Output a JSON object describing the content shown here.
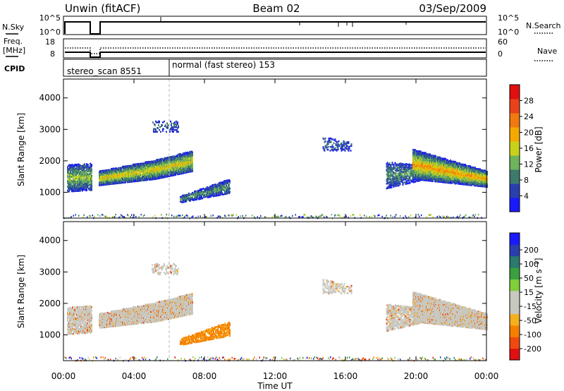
{
  "header": {
    "title": "Unwin (fitACF)",
    "beam": "Beam 02",
    "date": "03/Sep/2009"
  },
  "summary_panel": {
    "nsky_label": "N.Sky",
    "nsky_tick_top": "10^5",
    "nsky_tick_bottom": "10^0",
    "nsearch_label": "N.Search",
    "nsearch_tick_top": "10^5",
    "nsearch_tick_bottom": "10^0",
    "freq_label_line1": "Freq.",
    "freq_label_line2": "[MHz]",
    "freq_tick_top": "18",
    "freq_tick_bottom": "8",
    "nave_label": "Nave",
    "nave_tick_top": "60",
    "nave_tick_bottom": "0",
    "cpid_label": "CPID",
    "cpid_mode_1": "stereo_scan 8551",
    "cpid_mode_2": "normal (fast stereo) 153"
  },
  "colors": {
    "power_scale": [
      "#1a1aff",
      "#2a3fae",
      "#3d7a6e",
      "#6fb35a",
      "#c9d21a",
      "#f5a800",
      "#f07a10",
      "#e8421a",
      "#e01010"
    ],
    "velocity_scale": [
      "#e01010",
      "#f04a10",
      "#f57f00",
      "#f5b020",
      "#c8c8c0",
      "#c8c8c0",
      "#7fcf3a",
      "#3aa040",
      "#2a7a6e",
      "#2a3fae",
      "#1a1aff"
    ]
  },
  "chart_data": [
    {
      "type": "heatmap",
      "panel": "power",
      "ylabel": "Slant Range [km]",
      "yticks": [
        "1000",
        "2000",
        "3000",
        "4000"
      ],
      "ylim": [
        180,
        4600
      ],
      "xlim": [
        0,
        24
      ],
      "colorbar_label": "Power [dB]",
      "colorbar_ticks": [
        "4",
        "8",
        "12",
        "16",
        "20",
        "24",
        "28"
      ],
      "colorbar_range": [
        0,
        32
      ]
    },
    {
      "type": "heatmap",
      "panel": "velocity",
      "ylabel": "Slant Range [km]",
      "yticks": [
        "1000",
        "2000",
        "3000",
        "4000"
      ],
      "ylim": [
        180,
        4600
      ],
      "xlim": [
        0,
        24
      ],
      "xlabel": "Time UT",
      "xticks": [
        "00:00",
        "04:00",
        "08:00",
        "12:00",
        "16:00",
        "20:00",
        "00:00"
      ],
      "colorbar_label": "Velocity [m s⁻¹]",
      "colorbar_ticks": [
        "200",
        "100",
        "50",
        "15",
        "-15",
        "-50",
        "-100",
        "-200"
      ]
    }
  ]
}
